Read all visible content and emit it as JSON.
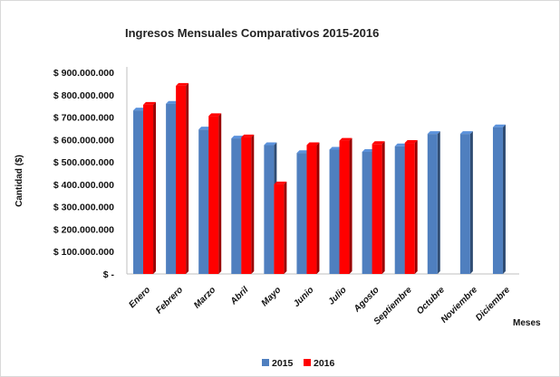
{
  "chart_data": {
    "type": "bar",
    "title": "Ingresos Mensuales Comparativos 2015-2016",
    "ylabel": "Cantidad ($)",
    "xlabel": "Meses",
    "categories": [
      "Enero",
      "Febrero",
      "Marzo",
      "Abril",
      "Mayo",
      "Junio",
      "Julio",
      "Agosto",
      "Septiembre",
      "Octubre",
      "Noviembre",
      "Diciembre"
    ],
    "series": [
      {
        "name": "2015",
        "color": "#4f7fbf",
        "values": [
          730000000,
          760000000,
          645000000,
          605000000,
          575000000,
          540000000,
          555000000,
          545000000,
          570000000,
          625000000,
          625000000,
          655000000
        ]
      },
      {
        "name": "2016",
        "color": "#ff0000",
        "values": [
          755000000,
          840000000,
          705000000,
          610000000,
          400000000,
          575000000,
          595000000,
          580000000,
          585000000,
          null,
          null,
          null
        ]
      }
    ],
    "ylim": [
      0,
      900000000
    ],
    "yticks": [
      0,
      100000000,
      200000000,
      300000000,
      400000000,
      500000000,
      600000000,
      700000000,
      800000000,
      900000000
    ],
    "ytick_labels": [
      "$ -",
      "$ 100.000.000",
      "$ 200.000.000",
      "$ 300.000.000",
      "$ 400.000.000",
      "$ 500.000.000",
      "$ 600.000.000",
      "$ 700.000.000",
      "$ 800.000.000",
      "$ 900.000.000"
    ],
    "grid": false,
    "legend_position": "bottom-center"
  }
}
